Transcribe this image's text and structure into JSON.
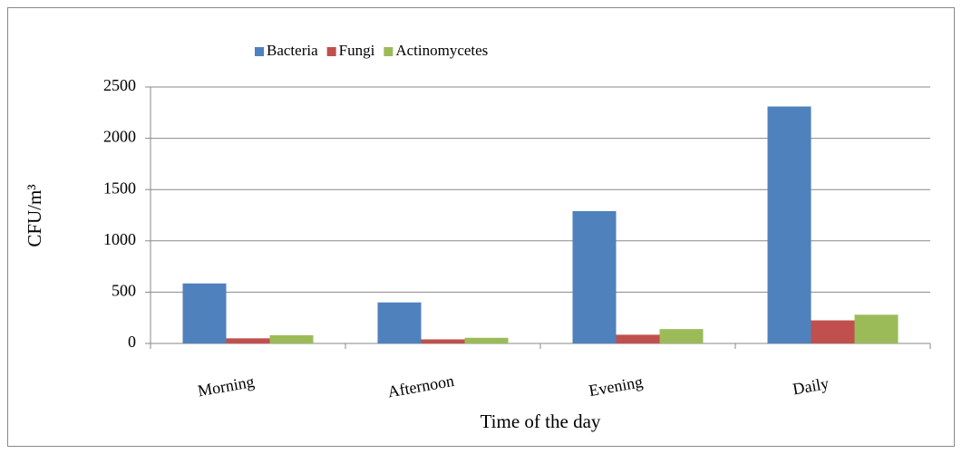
{
  "chart_data": {
    "type": "bar",
    "categories": [
      "Morning",
      "Afternoon",
      "Evening",
      "Daily"
    ],
    "series": [
      {
        "name": "Bacteria",
        "color": "#4f81bd",
        "values": [
          585,
          400,
          1290,
          2310
        ]
      },
      {
        "name": "Fungi",
        "color": "#c0504d",
        "values": [
          50,
          40,
          85,
          225
        ]
      },
      {
        "name": "Actinomycetes",
        "color": "#9bbb59",
        "values": [
          80,
          55,
          140,
          280
        ]
      }
    ],
    "y_label": "CFU/m³",
    "x_label": "Time of the day",
    "ylim": [
      0,
      2500
    ],
    "yticks": [
      0,
      500,
      1000,
      1500,
      2000,
      2500
    ],
    "grid": true,
    "legend": "top"
  }
}
